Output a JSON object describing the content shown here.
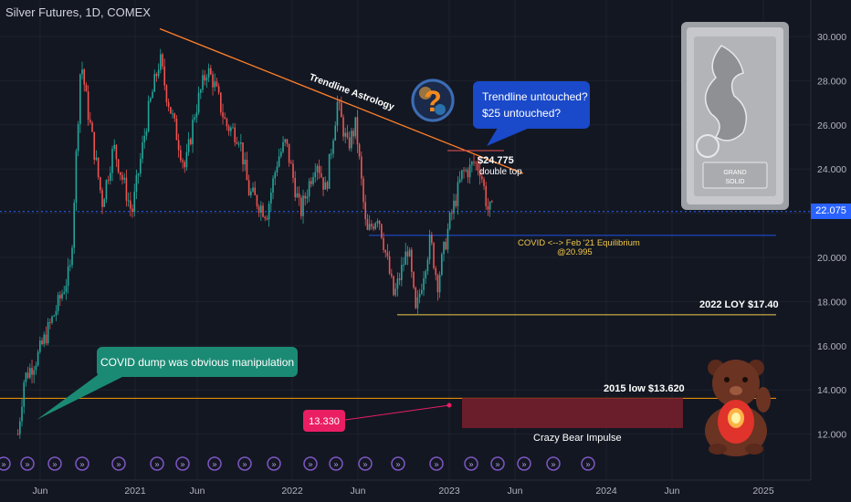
{
  "header": {
    "title": "Silver Futures, 1D, COMEX"
  },
  "price_tag": "22.075",
  "colors": {
    "background": "#131722",
    "up": "#26a69a",
    "down": "#ef5350",
    "trendline": "#ff7f2a",
    "accent_blue": "#2962ff",
    "equilibrium_line": "#1e53e5",
    "loy_line": "#f2c94c",
    "callout_green": "#1b8a74",
    "callout_blue": "#1a49c9",
    "marker_pink": "#e91e63",
    "bear_box": "#7a1f2b"
  },
  "chart_data": {
    "type": "candlestick",
    "title": "Silver Futures, 1D, COMEX",
    "x_ticks": [
      "Jun",
      "2021",
      "Jun",
      "2022",
      "Jun",
      "2023",
      "Jun",
      "2024",
      "Jun",
      "2025"
    ],
    "y_ticks": [
      "30.000",
      "28.000",
      "26.000",
      "24.000",
      "22.000",
      "20.000",
      "18.000",
      "16.000",
      "14.000",
      "12.000"
    ],
    "ylim": [
      11,
      31
    ],
    "last_price": 22.075,
    "levels": [
      {
        "name": "COVID <--> Feb '21 Equilibrium",
        "value": 20.995
      },
      {
        "name": "2022 LOY",
        "value": 17.4
      },
      {
        "name": "2015 low",
        "value": 13.62
      }
    ],
    "series_path": [
      [
        "2020-03-18",
        12.0
      ],
      [
        "2020-04-01",
        14.5
      ],
      [
        "2020-05-01",
        15.5
      ],
      [
        "2020-06-15",
        17.8
      ],
      [
        "2020-07-15",
        19.5
      ],
      [
        "2020-08-07",
        29.0
      ],
      [
        "2020-08-20",
        27.0
      ],
      [
        "2020-09-24",
        22.5
      ],
      [
        "2020-10-20",
        25.0
      ],
      [
        "2020-11-30",
        22.0
      ],
      [
        "2021-01-05",
        26.5
      ],
      [
        "2021-02-01",
        29.0
      ],
      [
        "2021-02-15",
        27.5
      ],
      [
        "2021-03-30",
        24.0
      ],
      [
        "2021-04-20",
        26.5
      ],
      [
        "2021-05-18",
        28.5
      ],
      [
        "2021-06-01",
        28.0
      ],
      [
        "2021-06-30",
        26.0
      ],
      [
        "2021-07-30",
        25.5
      ],
      [
        "2021-08-20",
        23.0
      ],
      [
        "2021-09-30",
        22.0
      ],
      [
        "2021-10-25",
        24.5
      ],
      [
        "2021-11-12",
        25.2
      ],
      [
        "2021-12-15",
        22.0
      ],
      [
        "2022-01-20",
        24.5
      ],
      [
        "2022-02-10",
        23.0
      ],
      [
        "2022-03-08",
        27.0
      ],
      [
        "2022-03-31",
        25.0
      ],
      [
        "2022-04-19",
        26.0
      ],
      [
        "2022-05-13",
        21.0
      ],
      [
        "2022-06-08",
        22.0
      ],
      [
        "2022-07-14",
        18.2
      ],
      [
        "2022-08-15",
        20.5
      ],
      [
        "2022-09-01",
        17.4
      ],
      [
        "2022-09-20",
        19.5
      ],
      [
        "2022-10-04",
        20.8
      ],
      [
        "2022-10-20",
        18.8
      ],
      [
        "2022-11-15",
        21.5
      ],
      [
        "2022-12-15",
        23.8
      ],
      [
        "2023-01-01",
        24.0
      ],
      [
        "2023-01-10",
        24.3
      ],
      [
        "2023-01-25",
        24.0
      ],
      [
        "2023-02-10",
        22.2
      ],
      [
        "2023-02-22",
        22.075
      ]
    ],
    "trendline": {
      "from": [
        "2021-02-01",
        30.35
      ],
      "to": [
        "2023-05-01",
        23.8
      ],
      "label": "Trendline Astrology"
    },
    "annotations": [
      {
        "text": "$24.775",
        "sub": "double top"
      },
      {
        "text": "COVID <--> Feb '21 Equilibrium",
        "sub": "@20.995"
      },
      {
        "text": "2022 LOY $17.40"
      },
      {
        "text": "2015 low $13.620"
      },
      {
        "text": "13.330"
      },
      {
        "text": "Crazy Bear Impulse"
      }
    ]
  },
  "callouts": {
    "covid": "COVID dump was obvious manipulation",
    "trend_line1": "Trendline untouched?",
    "trend_line2": "$25 untouched?"
  },
  "labels": {
    "trendline": "Trendline Astrology",
    "double_top_price": "$24.775",
    "double_top_sub": "double top",
    "equilibrium": "COVID <--> Feb '21 Equilibrium",
    "equilibrium_val": "@20.995",
    "loy": "2022 LOY $17.40",
    "low2015": "2015 low $13.620",
    "marker": "13.330",
    "bear": "Crazy Bear Impulse"
  },
  "bar_text": {
    "line1": "GRAND",
    "line2": "SOLID"
  },
  "icons": [
    "question-orb-icon",
    "silver-bar-dragon-image",
    "red-bear-image",
    "event-marker-icon"
  ]
}
